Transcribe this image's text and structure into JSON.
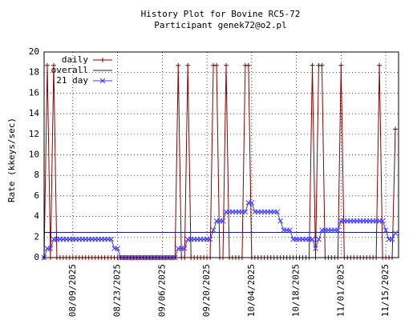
{
  "chart_data": {
    "type": "line",
    "title": "History Plot for Bovine RC5-72",
    "subtitle": "Participant genek72@o2.pl",
    "y_label": "Rate (kkeys/sec)",
    "x": [
      "2025-07-31",
      "2025-08-01",
      "2025-08-02",
      "2025-08-03",
      "2025-08-04",
      "2025-08-05",
      "2025-08-06",
      "2025-08-07",
      "2025-08-08",
      "2025-08-09",
      "2025-08-10",
      "2025-08-11",
      "2025-08-12",
      "2025-08-13",
      "2025-08-14",
      "2025-08-15",
      "2025-08-16",
      "2025-08-17",
      "2025-08-18",
      "2025-08-19",
      "2025-08-20",
      "2025-08-21",
      "2025-08-22",
      "2025-08-23",
      "2025-08-24",
      "2025-08-25",
      "2025-08-26",
      "2025-08-27",
      "2025-08-28",
      "2025-08-29",
      "2025-08-30",
      "2025-08-31",
      "2025-09-01",
      "2025-09-02",
      "2025-09-03",
      "2025-09-04",
      "2025-09-05",
      "2025-09-06",
      "2025-09-07",
      "2025-09-08",
      "2025-09-09",
      "2025-09-10",
      "2025-09-11",
      "2025-09-12",
      "2025-09-13",
      "2025-09-14",
      "2025-09-15",
      "2025-09-16",
      "2025-09-17",
      "2025-09-18",
      "2025-09-19",
      "2025-09-20",
      "2025-09-21",
      "2025-09-22",
      "2025-09-23",
      "2025-09-24",
      "2025-09-25",
      "2025-09-26",
      "2025-09-27",
      "2025-09-28",
      "2025-09-29",
      "2025-09-30",
      "2025-10-01",
      "2025-10-02",
      "2025-10-03",
      "2025-10-04",
      "2025-10-05",
      "2025-10-06",
      "2025-10-07",
      "2025-10-08",
      "2025-10-09",
      "2025-10-10",
      "2025-10-11",
      "2025-10-12",
      "2025-10-13",
      "2025-10-14",
      "2025-10-15",
      "2025-10-16",
      "2025-10-17",
      "2025-10-18",
      "2025-10-19",
      "2025-10-20",
      "2025-10-21",
      "2025-10-22",
      "2025-10-23",
      "2025-10-24",
      "2025-10-25",
      "2025-10-26",
      "2025-10-27",
      "2025-10-28",
      "2025-10-29",
      "2025-10-30",
      "2025-10-31",
      "2025-11-01",
      "2025-11-02",
      "2025-11-03",
      "2025-11-04",
      "2025-11-05",
      "2025-11-06",
      "2025-11-07",
      "2025-11-08",
      "2025-11-09",
      "2025-11-10",
      "2025-11-11",
      "2025-11-12",
      "2025-11-13",
      "2025-11-14",
      "2025-11-15",
      "2025-11-16",
      "2025-11-17",
      "2025-11-18"
    ],
    "series": [
      {
        "name": "daily",
        "color": "#8b0000",
        "marker": "+",
        "values": [
          0,
          18.7,
          0,
          18.7,
          0,
          0,
          0,
          0,
          0,
          0,
          0,
          0,
          0,
          0,
          0,
          0,
          0,
          0,
          0,
          0,
          0,
          0,
          0,
          0,
          0,
          0,
          0,
          0,
          0,
          0,
          0,
          0,
          0,
          0,
          0,
          0,
          0,
          0,
          0,
          0,
          0,
          0,
          18.7,
          0,
          0,
          18.7,
          0,
          0,
          0,
          0,
          0,
          0,
          0,
          18.7,
          18.7,
          0,
          0,
          18.7,
          0,
          0,
          0,
          0,
          0,
          18.7,
          18.7,
          0,
          0,
          0,
          0,
          0,
          0,
          0,
          0,
          0,
          0,
          0,
          0,
          0,
          0,
          0,
          0,
          0,
          0,
          0,
          18.7,
          0,
          18.7,
          18.7,
          0,
          0,
          0,
          0,
          0,
          18.7,
          0,
          0,
          0,
          0,
          0,
          0,
          0,
          0,
          0,
          0,
          0,
          18.7,
          0,
          0,
          0,
          0,
          12.5
        ]
      },
      {
        "name": "21 day",
        "color": "#3a3aff",
        "marker": "x",
        "values": [
          0,
          0.89,
          0.89,
          1.78,
          1.78,
          1.78,
          1.78,
          1.78,
          1.78,
          1.78,
          1.78,
          1.78,
          1.78,
          1.78,
          1.78,
          1.78,
          1.78,
          1.78,
          1.78,
          1.78,
          1.78,
          1.78,
          0.89,
          0.89,
          0,
          0,
          0,
          0,
          0,
          0,
          0,
          0,
          0,
          0,
          0,
          0,
          0,
          0,
          0,
          0,
          0,
          0,
          0.89,
          0.89,
          0.89,
          1.78,
          1.78,
          1.78,
          1.78,
          1.78,
          1.78,
          1.78,
          1.78,
          2.67,
          3.56,
          3.56,
          3.56,
          4.45,
          4.45,
          4.45,
          4.45,
          4.45,
          4.45,
          4.45,
          5.34,
          5.34,
          4.45,
          4.45,
          4.45,
          4.45,
          4.45,
          4.45,
          4.45,
          4.45,
          3.56,
          2.67,
          2.67,
          2.67,
          1.78,
          1.78,
          1.78,
          1.78,
          1.78,
          1.78,
          1.78,
          0.89,
          1.78,
          2.67,
          2.67,
          2.67,
          2.67,
          2.67,
          2.67,
          3.56,
          3.56,
          3.56,
          3.56,
          3.56,
          3.56,
          3.56,
          3.56,
          3.56,
          3.56,
          3.56,
          3.56,
          3.56,
          3.56,
          2.67,
          1.78,
          1.78,
          2.38
        ]
      }
    ],
    "reference_lines": [
      {
        "name": "overall",
        "color": "#1a1a8c",
        "value": 2.45
      }
    ],
    "xlim": [
      "2025-07-31",
      "2025-11-19"
    ],
    "xticks": [
      {
        "value": "2025-08-09",
        "label": "08/09/2025"
      },
      {
        "value": "2025-08-23",
        "label": "08/23/2025"
      },
      {
        "value": "2025-09-06",
        "label": "09/06/2025"
      },
      {
        "value": "2025-09-20",
        "label": "09/20/2025"
      },
      {
        "value": "2025-10-04",
        "label": "10/04/2025"
      },
      {
        "value": "2025-10-18",
        "label": "10/18/2025"
      },
      {
        "value": "2025-11-01",
        "label": "11/01/2025"
      },
      {
        "value": "2025-11-15",
        "label": "11/15/2025"
      }
    ],
    "ylim": [
      0,
      20
    ],
    "yticks": [
      0,
      2,
      4,
      6,
      8,
      10,
      12,
      14,
      16,
      18,
      20
    ],
    "grid": true,
    "legend": "top-left"
  }
}
